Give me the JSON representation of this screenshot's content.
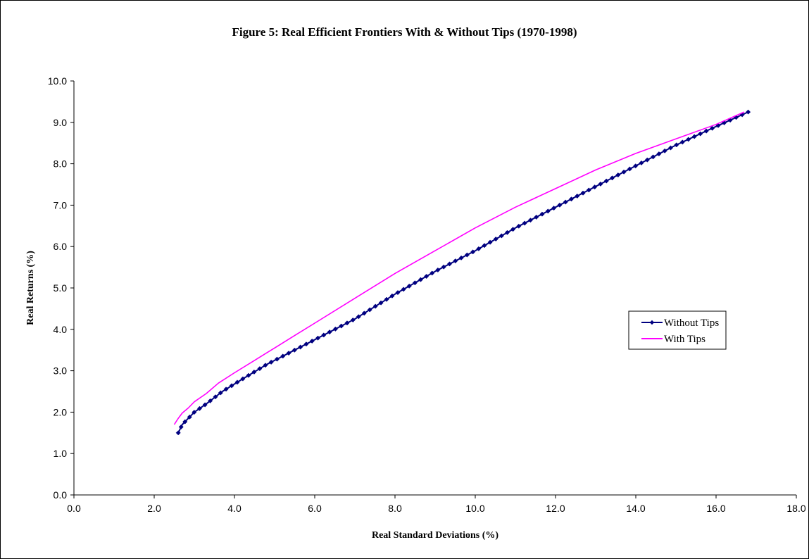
{
  "chart_data": {
    "type": "line",
    "title": "Figure 5: Real Efficient Frontiers With & Without Tips (1970-1998)",
    "xlabel": "Real Standard Deviations (%)",
    "ylabel": "Real Returns (%)",
    "xlim": [
      0,
      18
    ],
    "ylim": [
      0,
      10
    ],
    "x_ticks": [
      "0.0",
      "2.0",
      "4.0",
      "6.0",
      "8.0",
      "10.0",
      "12.0",
      "14.0",
      "16.0",
      "18.0"
    ],
    "y_ticks": [
      "0.0",
      "1.0",
      "2.0",
      "3.0",
      "4.0",
      "5.0",
      "6.0",
      "7.0",
      "8.0",
      "9.0",
      "10.0"
    ],
    "grid": false,
    "legend_position": "right",
    "series": [
      {
        "name": "Without Tips",
        "color": "#000080",
        "marker": "diamond",
        "x": [
          2.6,
          2.7,
          2.85,
          3.0,
          3.3,
          3.7,
          4.2,
          4.8,
          5.5,
          6.2,
          7.0,
          8.0,
          9.0,
          10.0,
          11.0,
          12.0,
          13.0,
          14.0,
          15.0,
          16.0,
          16.8
        ],
        "y": [
          1.5,
          1.7,
          1.85,
          2.0,
          2.2,
          2.5,
          2.8,
          3.15,
          3.5,
          3.85,
          4.25,
          4.85,
          5.4,
          5.9,
          6.45,
          6.95,
          7.45,
          7.95,
          8.45,
          8.9,
          9.25
        ]
      },
      {
        "name": "With Tips",
        "color": "#ff00ff",
        "marker": "none",
        "x": [
          2.5,
          2.6,
          2.7,
          2.85,
          3.0,
          3.3,
          3.6,
          4.0,
          4.5,
          5.0,
          5.5,
          6.0,
          7.0,
          8.0,
          9.0,
          10.0,
          11.0,
          12.0,
          13.0,
          14.0,
          15.0,
          16.0,
          16.7
        ],
        "y": [
          1.7,
          1.85,
          1.98,
          2.1,
          2.25,
          2.45,
          2.7,
          2.95,
          3.25,
          3.55,
          3.85,
          4.15,
          4.75,
          5.35,
          5.9,
          6.45,
          6.95,
          7.4,
          7.85,
          8.25,
          8.6,
          8.95,
          9.25
        ]
      }
    ]
  }
}
